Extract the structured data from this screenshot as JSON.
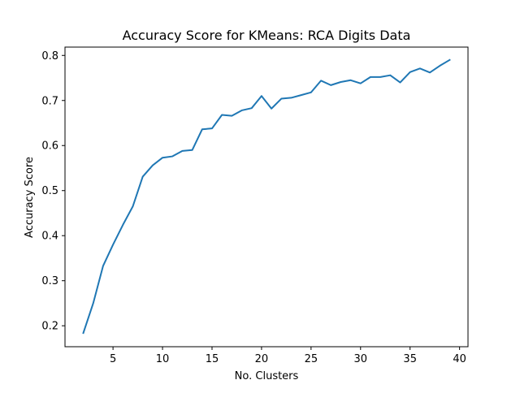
{
  "chart_data": {
    "type": "line",
    "title": "Accuracy Score for KMeans: RCA Digits Data",
    "xlabel": "No. Clusters",
    "ylabel": "Accuracy Score",
    "xlim": [
      0.15,
      40.85
    ],
    "ylim": [
      0.1535,
      0.8185
    ],
    "xticks": [
      5,
      10,
      15,
      20,
      25,
      30,
      35,
      40
    ],
    "yticks": [
      0.2,
      0.3,
      0.4,
      0.5,
      0.6,
      0.7,
      0.8
    ],
    "grid": false,
    "legend": "none",
    "series": [
      {
        "color": "#1f77b4",
        "x": [
          2,
          3,
          4,
          5,
          6,
          7,
          8,
          9,
          10,
          11,
          12,
          13,
          14,
          15,
          16,
          17,
          18,
          19,
          20,
          21,
          22,
          23,
          24,
          25,
          26,
          27,
          28,
          29,
          30,
          31,
          32,
          33,
          34,
          35,
          36,
          37,
          38,
          39
        ],
        "y": [
          0.184,
          0.25,
          0.333,
          0.38,
          0.424,
          0.465,
          0.531,
          0.556,
          0.573,
          0.576,
          0.588,
          0.59,
          0.636,
          0.638,
          0.668,
          0.666,
          0.678,
          0.683,
          0.71,
          0.682,
          0.704,
          0.706,
          0.712,
          0.718,
          0.744,
          0.734,
          0.741,
          0.745,
          0.738,
          0.752,
          0.752,
          0.756,
          0.74,
          0.763,
          0.771,
          0.762,
          0.777,
          0.79
        ]
      }
    ]
  }
}
